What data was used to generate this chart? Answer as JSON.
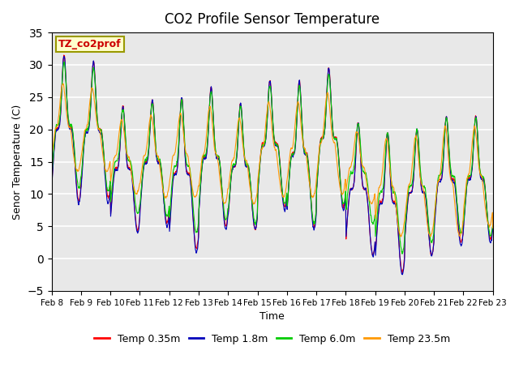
{
  "title": "CO2 Profile Sensor Temperature",
  "ylabel": "Senor Temperature (C)",
  "xlabel": "Time",
  "ylim": [
    -5,
    35
  ],
  "legend_label": "TZ_co2prof",
  "series_labels": [
    "Temp 0.35m",
    "Temp 1.8m",
    "Temp 6.0m",
    "Temp 23.5m"
  ],
  "series_colors": [
    "#ff0000",
    "#0000bb",
    "#00cc00",
    "#ff9900"
  ],
  "xtick_labels": [
    "Feb 8",
    "Feb 9",
    "Feb 10",
    "Feb 11",
    "Feb 12",
    "Feb 13",
    "Feb 14",
    "Feb 15",
    "Feb 16",
    "Feb 17",
    "Feb 18",
    "Feb 19",
    "Feb 20",
    "Feb 21",
    "Feb 22",
    "Feb 23"
  ],
  "bg_color": "#e8e8e8",
  "fig_bg_color": "#ffffff",
  "grid_color": "#ffffff",
  "yticks": [
    -5,
    0,
    5,
    10,
    15,
    20,
    25,
    30,
    35
  ],
  "n_days": 15,
  "pts_per_day": 144,
  "daily_peaks": [
    31.5,
    30.5,
    23.5,
    24.5,
    25.0,
    26.5,
    24.0,
    27.5,
    27.5,
    29.5,
    21.0,
    19.5,
    20.0,
    22.0,
    22.0
  ],
  "daily_mins_035": [
    9.0,
    9.5,
    4.5,
    5.5,
    1.5,
    5.0,
    4.5,
    8.0,
    5.0,
    8.0,
    0.5,
    -2.0,
    0.5,
    2.5,
    3.0
  ],
  "daily_mins_18": [
    8.5,
    8.5,
    4.0,
    5.0,
    1.0,
    4.5,
    4.5,
    7.5,
    4.5,
    7.5,
    0.5,
    -2.5,
    0.5,
    2.0,
    2.5
  ],
  "daily_mins_60": [
    11.0,
    10.5,
    7.0,
    6.5,
    4.0,
    6.0,
    5.5,
    8.5,
    5.5,
    8.5,
    5.5,
    1.0,
    2.5,
    4.0,
    3.5
  ],
  "daily_mins_235": [
    13.5,
    13.5,
    10.0,
    9.5,
    9.5,
    8.5,
    8.5,
    9.5,
    9.5,
    10.0,
    8.5,
    3.5,
    3.5,
    3.5,
    5.0
  ]
}
